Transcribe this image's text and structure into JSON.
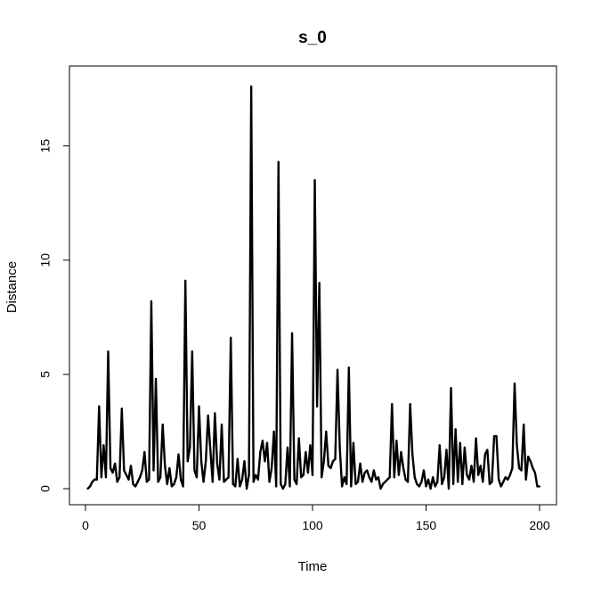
{
  "chart_data": {
    "type": "line",
    "title": "s_0",
    "xlabel": "Time",
    "ylabel": "Distance",
    "xlim": [
      1,
      200
    ],
    "ylim": [
      0,
      17.6
    ],
    "grid": false,
    "line_color": "#000000",
    "x_ticks": [
      0,
      50,
      100,
      150,
      200
    ],
    "x_tick_labels": [
      "0",
      "50",
      "100",
      "150",
      "200"
    ],
    "y_ticks": [
      0,
      5,
      10,
      15
    ],
    "y_tick_labels": [
      "0",
      "5",
      "10",
      "15"
    ],
    "x_start": 1,
    "values": [
      0.0,
      0.1,
      0.3,
      0.4,
      0.4,
      3.6,
      0.5,
      1.9,
      0.5,
      6.0,
      0.9,
      0.7,
      1.1,
      0.3,
      0.5,
      3.5,
      0.8,
      0.6,
      0.4,
      1.0,
      0.2,
      0.1,
      0.3,
      0.5,
      0.8,
      1.6,
      0.3,
      0.4,
      8.2,
      0.8,
      4.8,
      0.3,
      0.5,
      2.8,
      1.0,
      0.2,
      0.9,
      0.1,
      0.2,
      0.5,
      1.5,
      0.4,
      0.1,
      9.1,
      1.2,
      1.8,
      6.0,
      0.8,
      0.5,
      3.6,
      1.2,
      0.3,
      1.2,
      3.2,
      1.7,
      0.3,
      3.3,
      1.1,
      0.4,
      2.8,
      0.3,
      0.4,
      0.5,
      6.6,
      0.2,
      0.1,
      1.3,
      0.1,
      0.4,
      1.2,
      0.0,
      0.6,
      17.6,
      0.3,
      0.6,
      0.4,
      1.6,
      2.1,
      1.2,
      2.0,
      0.3,
      0.9,
      2.5,
      0.1,
      14.3,
      0.2,
      0.0,
      0.2,
      1.8,
      0.1,
      6.8,
      0.4,
      0.2,
      2.2,
      0.5,
      0.6,
      1.6,
      0.7,
      1.9,
      0.6,
      13.5,
      3.6,
      9.0,
      0.5,
      1.2,
      2.5,
      1.0,
      0.9,
      1.2,
      1.3,
      5.2,
      1.8,
      0.1,
      0.5,
      0.2,
      5.3,
      0.1,
      2.0,
      0.2,
      0.3,
      1.1,
      0.3,
      0.7,
      0.8,
      0.5,
      0.3,
      0.8,
      0.4,
      0.5,
      0.0,
      0.2,
      0.3,
      0.4,
      0.5,
      3.7,
      0.5,
      2.1,
      0.6,
      1.6,
      0.9,
      0.4,
      0.3,
      3.7,
      1.5,
      0.5,
      0.2,
      0.1,
      0.3,
      0.8,
      0.1,
      0.4,
      0.0,
      0.5,
      0.1,
      0.3,
      1.9,
      0.2,
      0.5,
      1.7,
      0.0,
      4.4,
      0.2,
      2.6,
      0.3,
      2.0,
      0.2,
      1.8,
      0.6,
      0.4,
      1.0,
      0.3,
      2.2,
      0.6,
      1.0,
      0.3,
      1.5,
      1.7,
      0.2,
      0.3,
      2.3,
      2.3,
      0.4,
      0.1,
      0.3,
      0.5,
      0.4,
      0.6,
      0.9,
      4.6,
      1.9,
      0.9,
      0.8,
      2.8,
      0.4,
      1.4,
      1.2,
      0.9,
      0.7,
      0.1,
      0.1
    ]
  }
}
